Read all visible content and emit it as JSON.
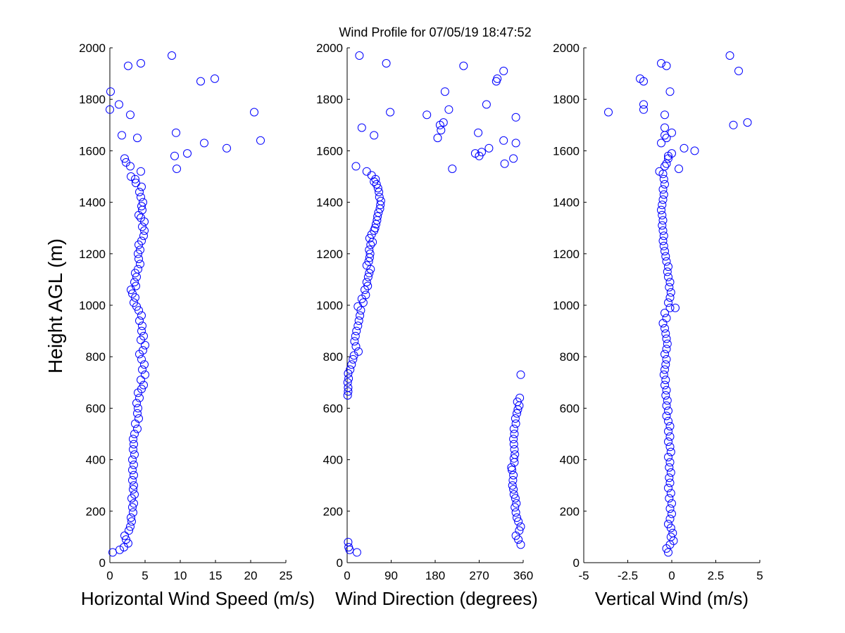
{
  "figure": {
    "title": "Wind Profile for  07/05/19 18:47:52",
    "ylabel": "Height AGL (m)",
    "marker_color": "#0000ff"
  },
  "chart_data": [
    {
      "type": "scatter",
      "name": "speed",
      "xlabel": "Horizontal Wind Speed (m/s)",
      "ylabel": "Height AGL (m)",
      "xlim": [
        0,
        25
      ],
      "ylim": [
        0,
        2000
      ],
      "xticks": [
        "0",
        "5",
        "10",
        "15",
        "20",
        "25"
      ],
      "yticks": [
        "0",
        "200",
        "400",
        "600",
        "800",
        "1000",
        "1200",
        "1400",
        "1600",
        "1800",
        "2000"
      ],
      "points": [
        [
          0.4,
          40
        ],
        [
          1.4,
          50
        ],
        [
          2.0,
          60
        ],
        [
          2.6,
          75
        ],
        [
          2.3,
          90
        ],
        [
          2.1,
          105
        ],
        [
          2.7,
          125
        ],
        [
          2.9,
          140
        ],
        [
          3.1,
          160
        ],
        [
          3.0,
          175
        ],
        [
          3.3,
          195
        ],
        [
          3.2,
          215
        ],
        [
          3.4,
          230
        ],
        [
          3.1,
          250
        ],
        [
          3.5,
          265
        ],
        [
          3.3,
          285
        ],
        [
          3.4,
          300
        ],
        [
          3.2,
          320
        ],
        [
          3.4,
          340
        ],
        [
          3.2,
          360
        ],
        [
          3.4,
          380
        ],
        [
          3.2,
          400
        ],
        [
          3.5,
          420
        ],
        [
          3.3,
          440
        ],
        [
          3.4,
          460
        ],
        [
          3.3,
          480
        ],
        [
          3.5,
          500
        ],
        [
          3.9,
          520
        ],
        [
          3.6,
          540
        ],
        [
          4.1,
          560
        ],
        [
          3.9,
          580
        ],
        [
          4.0,
          600
        ],
        [
          3.8,
          620
        ],
        [
          4.2,
          640
        ],
        [
          4.0,
          660
        ],
        [
          4.5,
          675
        ],
        [
          4.8,
          690
        ],
        [
          4.4,
          710
        ],
        [
          5.0,
          730
        ],
        [
          4.6,
          750
        ],
        [
          4.9,
          770
        ],
        [
          4.5,
          790
        ],
        [
          4.2,
          810
        ],
        [
          4.7,
          825
        ],
        [
          5.0,
          845
        ],
        [
          4.4,
          865
        ],
        [
          4.8,
          880
        ],
        [
          4.5,
          900
        ],
        [
          4.6,
          920
        ],
        [
          4.2,
          940
        ],
        [
          4.5,
          960
        ],
        [
          4.1,
          980
        ],
        [
          3.8,
          995
        ],
        [
          3.4,
          1010
        ],
        [
          3.6,
          1030
        ],
        [
          3.2,
          1045
        ],
        [
          3.0,
          1060
        ],
        [
          3.7,
          1075
        ],
        [
          3.5,
          1090
        ],
        [
          3.8,
          1110
        ],
        [
          3.6,
          1125
        ],
        [
          4.0,
          1140
        ],
        [
          4.3,
          1160
        ],
        [
          4.1,
          1180
        ],
        [
          4.0,
          1200
        ],
        [
          4.3,
          1215
        ],
        [
          4.1,
          1235
        ],
        [
          4.5,
          1250
        ],
        [
          4.8,
          1270
        ],
        [
          4.9,
          1290
        ],
        [
          4.6,
          1305
        ],
        [
          4.9,
          1325
        ],
        [
          4.4,
          1340
        ],
        [
          4.1,
          1350
        ],
        [
          4.6,
          1370
        ],
        [
          4.5,
          1385
        ],
        [
          4.7,
          1400
        ],
        [
          4.4,
          1420
        ],
        [
          4.2,
          1440
        ],
        [
          4.5,
          1460
        ],
        [
          3.7,
          1475
        ],
        [
          3.6,
          1490
        ],
        [
          3.0,
          1500
        ],
        [
          4.4,
          1520
        ],
        [
          2.9,
          1540
        ],
        [
          2.3,
          1555
        ],
        [
          2.1,
          1570
        ],
        [
          9.2,
          1580
        ],
        [
          11.0,
          1590
        ],
        [
          16.6,
          1610
        ],
        [
          13.4,
          1630
        ],
        [
          21.4,
          1640
        ],
        [
          3.9,
          1650
        ],
        [
          1.7,
          1660
        ],
        [
          9.4,
          1670
        ],
        [
          20.5,
          1750
        ],
        [
          2.9,
          1740
        ],
        [
          0.0,
          1760
        ],
        [
          1.3,
          1780
        ],
        [
          0.1,
          1830
        ],
        [
          12.9,
          1870
        ],
        [
          14.9,
          1880
        ],
        [
          2.6,
          1930
        ],
        [
          4.4,
          1940
        ],
        [
          8.8,
          1970
        ],
        [
          9.5,
          1530
        ]
      ]
    },
    {
      "type": "scatter",
      "name": "direction",
      "xlabel": "Wind Direction (degrees)",
      "ylabel": "",
      "xlim": [
        0,
        360
      ],
      "ylim": [
        0,
        2000
      ],
      "xticks": [
        "0",
        "90",
        "180",
        "270",
        "360"
      ],
      "yticks": [
        "0",
        "200",
        "400",
        "600",
        "800",
        "1000",
        "1200",
        "1400",
        "1600",
        "1800",
        "2000"
      ],
      "points": [
        [
          20,
          40
        ],
        [
          5,
          50
        ],
        [
          3,
          60
        ],
        [
          2,
          80
        ],
        [
          355,
          70
        ],
        [
          350,
          90
        ],
        [
          345,
          105
        ],
        [
          352,
          125
        ],
        [
          355,
          140
        ],
        [
          350,
          160
        ],
        [
          347,
          175
        ],
        [
          345,
          195
        ],
        [
          343,
          215
        ],
        [
          346,
          230
        ],
        [
          344,
          250
        ],
        [
          341,
          265
        ],
        [
          340,
          285
        ],
        [
          338,
          300
        ],
        [
          339,
          320
        ],
        [
          340,
          340
        ],
        [
          337,
          360
        ],
        [
          336,
          370
        ],
        [
          342,
          390
        ],
        [
          341,
          405
        ],
        [
          343,
          420
        ],
        [
          342,
          440
        ],
        [
          341,
          460
        ],
        [
          340,
          480
        ],
        [
          342,
          500
        ],
        [
          341,
          520
        ],
        [
          345,
          540
        ],
        [
          344,
          560
        ],
        [
          347,
          580
        ],
        [
          349,
          595
        ],
        [
          352,
          610
        ],
        [
          348,
          625
        ],
        [
          353,
          640
        ],
        [
          355,
          730
        ],
        [
          1,
          650
        ],
        [
          2,
          665
        ],
        [
          2,
          680
        ],
        [
          1,
          700
        ],
        [
          3,
          715
        ],
        [
          2,
          735
        ],
        [
          6,
          750
        ],
        [
          9,
          770
        ],
        [
          12,
          790
        ],
        [
          14,
          805
        ],
        [
          23,
          820
        ],
        [
          18,
          840
        ],
        [
          15,
          860
        ],
        [
          17,
          880
        ],
        [
          19,
          900
        ],
        [
          22,
          920
        ],
        [
          24,
          940
        ],
        [
          26,
          960
        ],
        [
          28,
          980
        ],
        [
          22,
          995
        ],
        [
          33,
          1010
        ],
        [
          30,
          1025
        ],
        [
          38,
          1040
        ],
        [
          36,
          1060
        ],
        [
          42,
          1075
        ],
        [
          40,
          1090
        ],
        [
          43,
          1110
        ],
        [
          45,
          1125
        ],
        [
          48,
          1140
        ],
        [
          40,
          1155
        ],
        [
          44,
          1170
        ],
        [
          46,
          1185
        ],
        [
          47,
          1200
        ],
        [
          45,
          1215
        ],
        [
          48,
          1235
        ],
        [
          52,
          1245
        ],
        [
          46,
          1260
        ],
        [
          50,
          1275
        ],
        [
          55,
          1290
        ],
        [
          57,
          1300
        ],
        [
          59,
          1315
        ],
        [
          61,
          1330
        ],
        [
          62,
          1345
        ],
        [
          64,
          1360
        ],
        [
          67,
          1375
        ],
        [
          68,
          1390
        ],
        [
          69,
          1405
        ],
        [
          66,
          1420
        ],
        [
          65,
          1440
        ],
        [
          63,
          1455
        ],
        [
          60,
          1470
        ],
        [
          55,
          1480
        ],
        [
          58,
          1490
        ],
        [
          50,
          1505
        ],
        [
          40,
          1520
        ],
        [
          18,
          1540
        ],
        [
          322,
          1550
        ],
        [
          215,
          1530
        ],
        [
          270,
          1580
        ],
        [
          262,
          1590
        ],
        [
          275,
          1595
        ],
        [
          290,
          1610
        ],
        [
          340,
          1570
        ],
        [
          345,
          1630
        ],
        [
          320,
          1640
        ],
        [
          185,
          1650
        ],
        [
          55,
          1660
        ],
        [
          268,
          1670
        ],
        [
          192,
          1680
        ],
        [
          190,
          1700
        ],
        [
          30,
          1690
        ],
        [
          197,
          1710
        ],
        [
          345,
          1730
        ],
        [
          163,
          1740
        ],
        [
          88,
          1750
        ],
        [
          208,
          1760
        ],
        [
          285,
          1780
        ],
        [
          200,
          1830
        ],
        [
          305,
          1870
        ],
        [
          307,
          1880
        ],
        [
          320,
          1910
        ],
        [
          238,
          1930
        ],
        [
          80,
          1940
        ],
        [
          25,
          1970
        ]
      ]
    },
    {
      "type": "scatter",
      "name": "vertical",
      "xlabel": "Vertical Wind (m/s)",
      "ylabel": "",
      "xlim": [
        -5,
        5
      ],
      "ylim": [
        0,
        2000
      ],
      "xticks": [
        "-5",
        "-2.5",
        "0",
        "2.5",
        "5"
      ],
      "yticks": [
        "0",
        "200",
        "400",
        "600",
        "800",
        "1000",
        "1200",
        "1400",
        "1600",
        "1800",
        "2000"
      ],
      "points": [
        [
          -0.2,
          40
        ],
        [
          -0.3,
          55
        ],
        [
          -0.1,
          70
        ],
        [
          0.1,
          85
        ],
        [
          -0.05,
          100
        ],
        [
          0.05,
          115
        ],
        [
          -0.05,
          135
        ],
        [
          -0.2,
          150
        ],
        [
          -0.1,
          170
        ],
        [
          0.0,
          190
        ],
        [
          -0.1,
          210
        ],
        [
          0.0,
          230
        ],
        [
          -0.15,
          250
        ],
        [
          -0.05,
          270
        ],
        [
          -0.2,
          290
        ],
        [
          -0.1,
          310
        ],
        [
          -0.15,
          330
        ],
        [
          -0.05,
          350
        ],
        [
          -0.15,
          370
        ],
        [
          -0.1,
          390
        ],
        [
          -0.2,
          410
        ],
        [
          -0.05,
          430
        ],
        [
          -0.1,
          450
        ],
        [
          -0.2,
          470
        ],
        [
          -0.1,
          490
        ],
        [
          -0.2,
          510
        ],
        [
          -0.1,
          530
        ],
        [
          -0.2,
          550
        ],
        [
          -0.3,
          570
        ],
        [
          -0.2,
          590
        ],
        [
          -0.3,
          610
        ],
        [
          -0.25,
          630
        ],
        [
          -0.35,
          650
        ],
        [
          -0.3,
          670
        ],
        [
          -0.4,
          690
        ],
        [
          -0.35,
          710
        ],
        [
          -0.45,
          730
        ],
        [
          -0.4,
          750
        ],
        [
          -0.35,
          770
        ],
        [
          -0.3,
          790
        ],
        [
          -0.4,
          810
        ],
        [
          -0.3,
          830
        ],
        [
          -0.25,
          850
        ],
        [
          -0.3,
          870
        ],
        [
          -0.35,
          890
        ],
        [
          -0.4,
          910
        ],
        [
          -0.5,
          930
        ],
        [
          -0.3,
          950
        ],
        [
          -0.4,
          970
        ],
        [
          -0.1,
          990
        ],
        [
          -0.2,
          1010
        ],
        [
          -0.1,
          1030
        ],
        [
          -0.05,
          1050
        ],
        [
          -0.15,
          1070
        ],
        [
          -0.1,
          1090
        ],
        [
          -0.2,
          1110
        ],
        [
          -0.25,
          1130
        ],
        [
          -0.2,
          1150
        ],
        [
          -0.3,
          1170
        ],
        [
          -0.35,
          1190
        ],
        [
          -0.4,
          1210
        ],
        [
          -0.45,
          1230
        ],
        [
          -0.5,
          1250
        ],
        [
          -0.45,
          1270
        ],
        [
          -0.5,
          1290
        ],
        [
          -0.55,
          1310
        ],
        [
          -0.5,
          1330
        ],
        [
          -0.55,
          1350
        ],
        [
          -0.6,
          1370
        ],
        [
          -0.55,
          1390
        ],
        [
          -0.5,
          1410
        ],
        [
          -0.45,
          1430
        ],
        [
          -0.5,
          1450
        ],
        [
          -0.4,
          1470
        ],
        [
          -0.45,
          1490
        ],
        [
          -0.5,
          1510
        ],
        [
          -0.7,
          1520
        ],
        [
          -0.4,
          1540
        ],
        [
          0.4,
          1530
        ],
        [
          -0.3,
          1550
        ],
        [
          -0.2,
          1570
        ],
        [
          0.0,
          1590
        ],
        [
          1.3,
          1600
        ],
        [
          0.7,
          1610
        ],
        [
          -0.6,
          1630
        ],
        [
          -0.3,
          1650
        ],
        [
          0.0,
          1670
        ],
        [
          -0.4,
          1690
        ],
        [
          3.5,
          1700
        ],
        [
          4.3,
          1710
        ],
        [
          -0.4,
          1740
        ],
        [
          -3.6,
          1750
        ],
        [
          -1.6,
          1760
        ],
        [
          -1.6,
          1780
        ],
        [
          -0.1,
          1830
        ],
        [
          -1.6,
          1870
        ],
        [
          -1.8,
          1880
        ],
        [
          3.8,
          1910
        ],
        [
          -0.3,
          1930
        ],
        [
          -0.6,
          1940
        ],
        [
          3.3,
          1970
        ],
        [
          -0.4,
          1660
        ],
        [
          -0.2,
          1580
        ],
        [
          0.2,
          990
        ]
      ]
    }
  ]
}
